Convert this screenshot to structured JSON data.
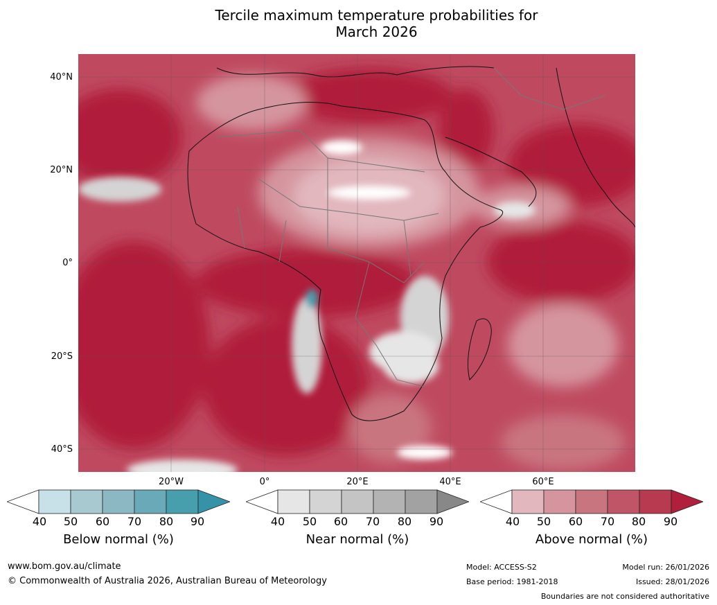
{
  "title": {
    "line1": "Tercile maximum temperature probabilities for",
    "line2": "March 2026"
  },
  "axes": {
    "lat_labels": [
      "40°N",
      "20°N",
      "0°",
      "20°S",
      "40°S"
    ],
    "lon_labels": [
      "20°W",
      "0°",
      "20°E",
      "40°E",
      "60°E"
    ]
  },
  "legend": {
    "below": {
      "label": "Below normal (%)",
      "ticks": [
        "40",
        "50",
        "60",
        "70",
        "80",
        "90"
      ],
      "colors": [
        "#ffffff",
        "#c8e1e8",
        "#a9c9d0",
        "#8cb8c4",
        "#6aaab8",
        "#479fae",
        "#3593a8"
      ]
    },
    "near": {
      "label": "Near normal (%)",
      "ticks": [
        "40",
        "50",
        "60",
        "70",
        "80",
        "90"
      ],
      "colors": [
        "#ffffff",
        "#e6e6e6",
        "#d4d4d4",
        "#c4c4c4",
        "#b3b3b3",
        "#a2a2a2",
        "#888888"
      ]
    },
    "above": {
      "label": "Above normal (%)",
      "ticks": [
        "40",
        "50",
        "60",
        "70",
        "80",
        "90"
      ],
      "colors": [
        "#ffffff",
        "#e2b7be",
        "#d5959f",
        "#c97580",
        "#bf5567",
        "#b83a50",
        "#b01f3b"
      ]
    }
  },
  "footer": {
    "url": "www.bom.gov.au/climate",
    "copyright": "© Commonwealth of Australia 2026, Australian Bureau of Meteorology",
    "model": "Model: ACCESS-S2",
    "base_period": "Base period: 1981-2018",
    "model_run": "Model run: 26/01/2026",
    "issued": "Issued: 28/01/2026",
    "disclaimer": "Boundaries are not considered authoritative"
  }
}
